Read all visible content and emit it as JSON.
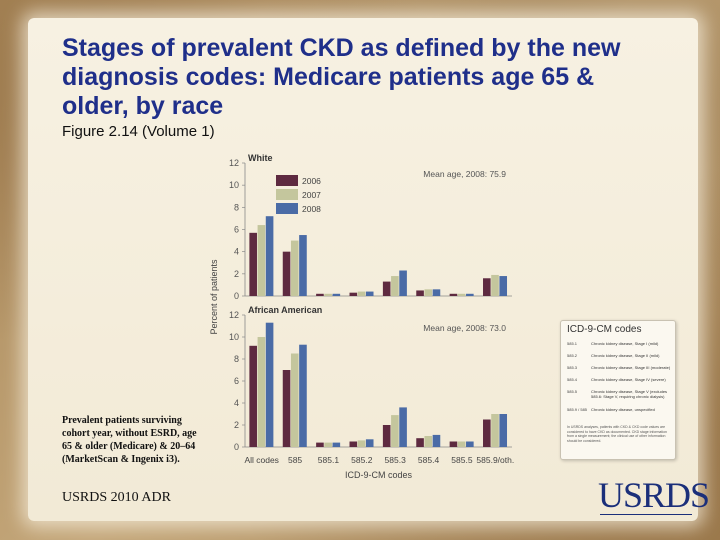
{
  "slide": {
    "title": "Stages of prevalent CKD as defined by the new diagnosis codes: Medicare patients age 65 & older, by race",
    "subtitle": "Figure 2.14 (Volume 1)",
    "note": "Prevalent patients surviving cohort year, without ESRD, age 65 & older (Medicare) & 20–64 (MarketScan & Ingenix i3).",
    "footer": "USRDS 2010 ADR",
    "logo": "USRDS"
  },
  "chart_data": {
    "type": "bar",
    "ylabel": "Percent of patients",
    "xlabel": "ICD-9-CM codes",
    "categories": [
      "All codes",
      "585",
      "585.1",
      "585.2",
      "585.3",
      "585.4",
      "585.5",
      "585.9/oth."
    ],
    "colors": [
      "#5e2a40",
      "#c4c69d",
      "#4a6ba6"
    ],
    "legend": [
      "2006",
      "2007",
      "2008"
    ],
    "panels": [
      {
        "name": "White",
        "mean_age": "Mean age, 2008: 75.9",
        "ylim": [
          0,
          12
        ],
        "yticks": [
          0,
          2,
          4,
          6,
          8,
          10,
          12
        ],
        "series": [
          {
            "name": "2006",
            "values": [
              5.7,
              4.0,
              0.2,
              0.3,
              1.3,
              0.5,
              0.2,
              1.6
            ]
          },
          {
            "name": "2007",
            "values": [
              6.4,
              5.0,
              0.2,
              0.4,
              1.8,
              0.6,
              0.2,
              1.9
            ]
          },
          {
            "name": "2008",
            "values": [
              7.2,
              5.5,
              0.2,
              0.4,
              2.3,
              0.6,
              0.2,
              1.8
            ]
          }
        ]
      },
      {
        "name": "African American",
        "mean_age": "Mean age, 2008: 73.0",
        "ylim": [
          0,
          12
        ],
        "yticks": [
          0,
          2,
          4,
          6,
          8,
          10,
          12
        ],
        "series": [
          {
            "name": "2006",
            "values": [
              9.2,
              7.0,
              0.4,
              0.5,
              2.0,
              0.8,
              0.5,
              2.5
            ]
          },
          {
            "name": "2007",
            "values": [
              10.0,
              8.5,
              0.4,
              0.6,
              2.9,
              1.0,
              0.5,
              3.0
            ]
          },
          {
            "name": "2008",
            "values": [
              11.3,
              9.3,
              0.4,
              0.7,
              3.6,
              1.1,
              0.5,
              3.0
            ]
          }
        ]
      }
    ],
    "codes_legend": {
      "title": "ICD-9-CM codes",
      "items": [
        {
          "code": "585.1",
          "desc": "Chronic kidney disease, Stage I (mild)"
        },
        {
          "code": "585.2",
          "desc": "Chronic kidney disease, Stage II (mild)"
        },
        {
          "code": "585.3",
          "desc": "Chronic kidney disease, Stage III (moderate)"
        },
        {
          "code": "585.4",
          "desc": "Chronic kidney disease, Stage IV (severe)"
        },
        {
          "code": "585.5",
          "desc": "Chronic kidney disease, Stage V (excludes 585.6: Stage V, requiring chronic dialysis)"
        },
        {
          "code": "585.9 / 585",
          "desc": "Chronic kidney disease, unspecified"
        }
      ],
      "note": "In USRDS analyses, patients with CKD & CKD code values are considered to have CKD as documented. CKD stage information from a single measurement; the clinical use of other information should be considered."
    }
  }
}
